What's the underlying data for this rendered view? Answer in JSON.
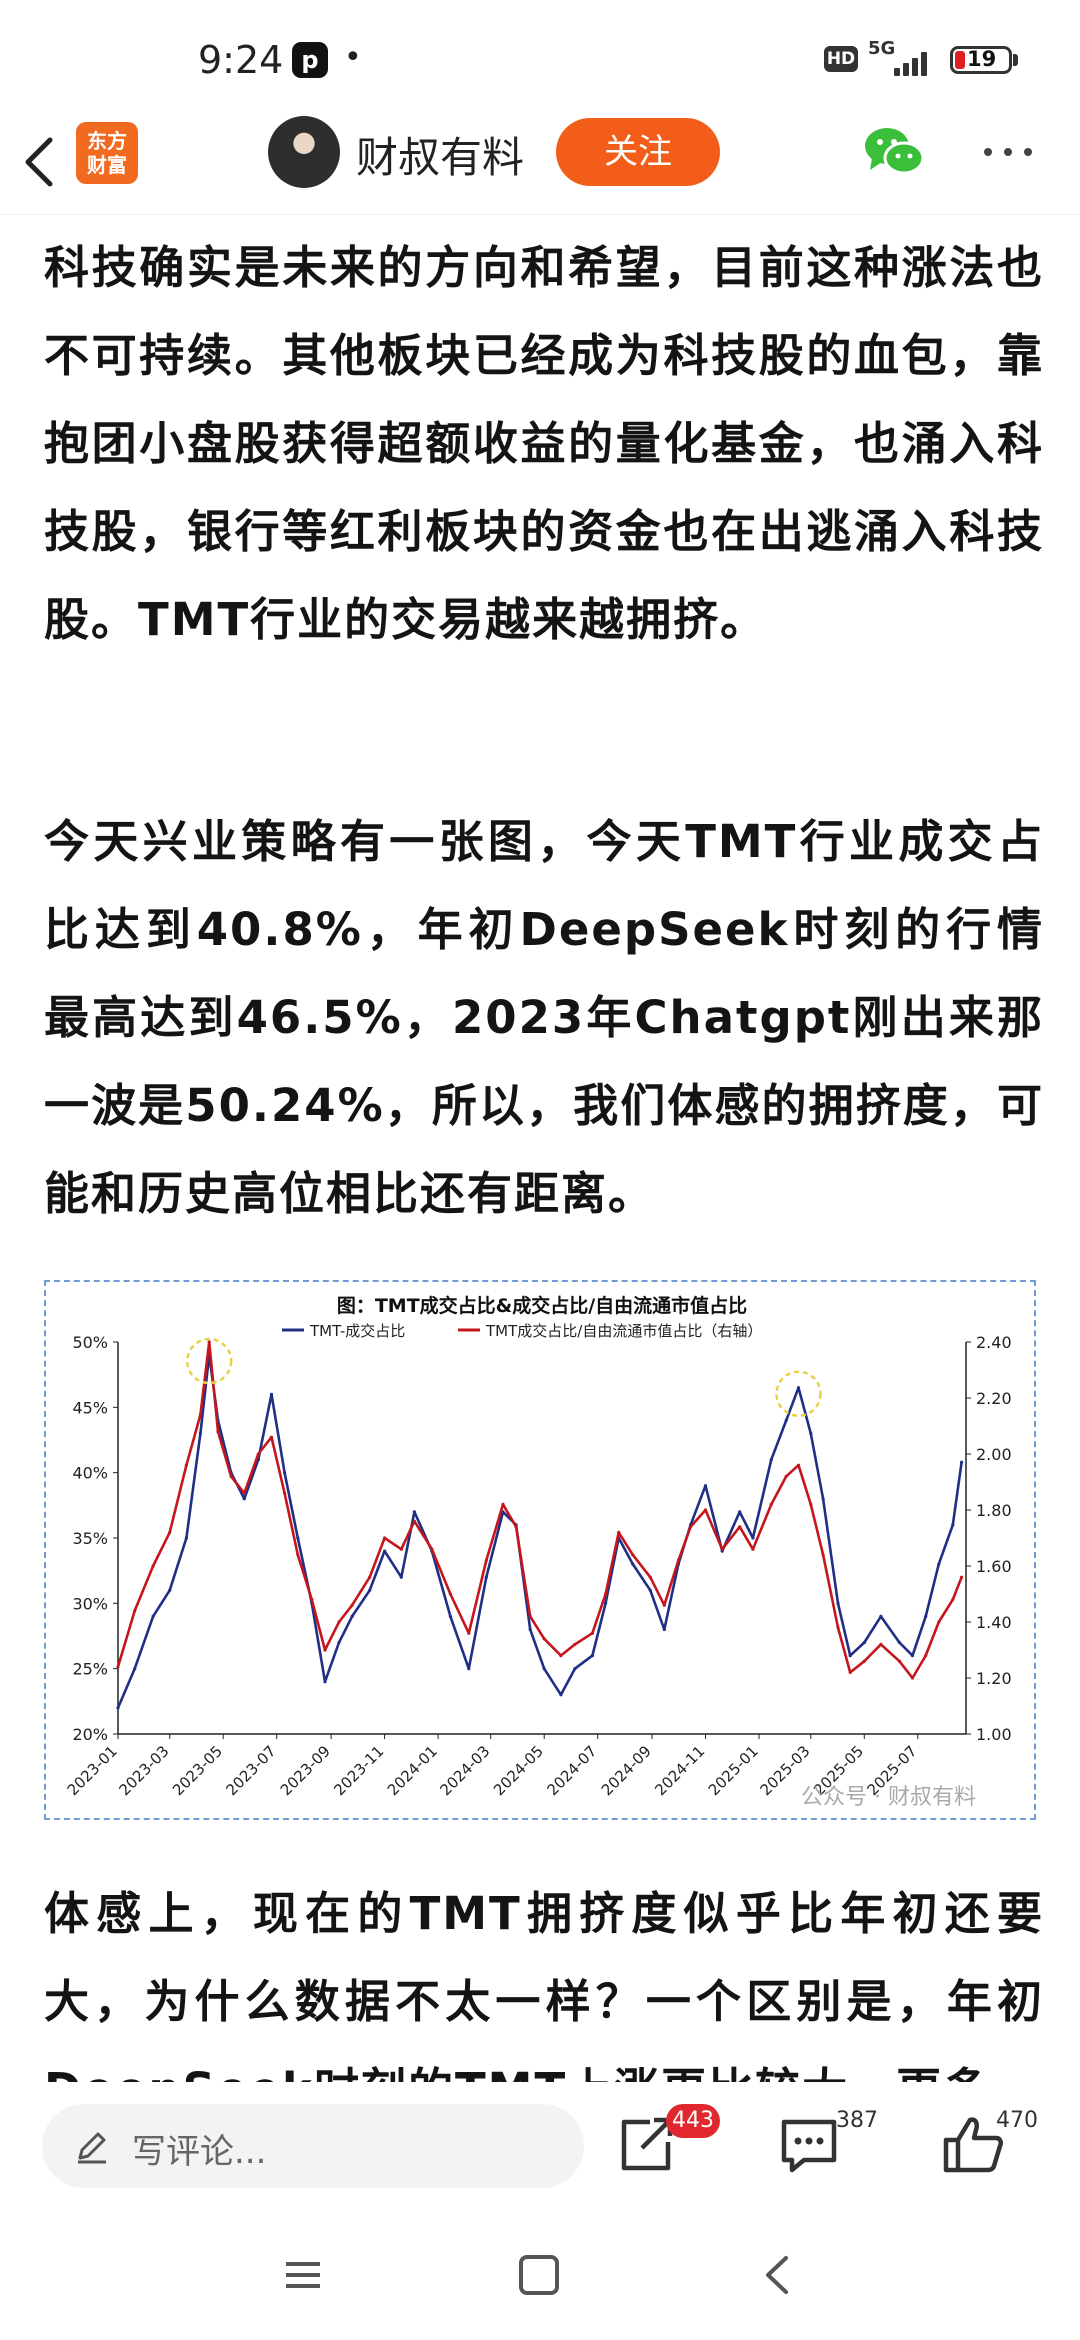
{
  "status_bar": {
    "time": "9:24",
    "app_icon_letter": "p",
    "dot": "•",
    "hd": "HD",
    "network": "5G",
    "battery": "19"
  },
  "header": {
    "logo_line1": "东方",
    "logo_line2": "财富",
    "author": "财叔有料",
    "follow_label": "关注"
  },
  "article": {
    "para1": "科技确实是未来的方向和希望，目前这种涨法也不可持续。其他板块已经成为科技股的血包，靠抱团小盘股获得超额收益的量化基金，也涌入科技股，银行等红利板块的资金也在出逃涌入科技股。TMT行业的交易越来越拥挤。",
    "para2": "今天兴业策略有一张图，今天TMT行业成交占比达到40.8%，年初DeepSeek时刻的行情最高达到46.5%，2023年Chatgpt刚出来那一波是50.24%，所以，我们体感的拥挤度，可能和历史高位相比还有距离。",
    "para3": "体感上，现在的TMT拥挤度似乎比年初还要大，为什么数据不太一样？一个区别是，年初DeepSeek时刻的TMT上涨更比较大，更多"
  },
  "chart_data": {
    "type": "line",
    "title": "图：TMT成交占比&成交占比/自由流通市值占比",
    "watermark": "公众号 · 财叔有料",
    "x_ticks": [
      "2023-01",
      "2023-03",
      "2023-05",
      "2023-07",
      "2023-09",
      "2023-11",
      "2024-01",
      "2024-03",
      "2024-05",
      "2024-07",
      "2024-09",
      "2024-11",
      "2025-01",
      "2025-03",
      "2025-05",
      "2025-07"
    ],
    "y_left_ticks": [
      "50%",
      "45%",
      "40%",
      "35%",
      "30%",
      "25%",
      "20%"
    ],
    "y_right_ticks": [
      "2.40",
      "2.20",
      "2.00",
      "1.80",
      "1.60",
      "1.40",
      "1.20",
      "1.00"
    ],
    "ylim_left": [
      20,
      50
    ],
    "ylim_right": [
      1.0,
      2.4
    ],
    "legend_position": "top",
    "series": [
      {
        "name": "TMT-成交占比",
        "axis": "left",
        "color": "#1f2f86",
        "points": [
          [
            "2023-01-01",
            22
          ],
          [
            "2023-01-20",
            25
          ],
          [
            "2023-02-10",
            29
          ],
          [
            "2023-03-01",
            31
          ],
          [
            "2023-03-20",
            35
          ],
          [
            "2023-04-05",
            43
          ],
          [
            "2023-04-15",
            49
          ],
          [
            "2023-04-25",
            44
          ],
          [
            "2023-05-10",
            40
          ],
          [
            "2023-05-25",
            38
          ],
          [
            "2023-06-10",
            41
          ],
          [
            "2023-06-25",
            46
          ],
          [
            "2023-07-10",
            40
          ],
          [
            "2023-07-25",
            35
          ],
          [
            "2023-08-10",
            30
          ],
          [
            "2023-08-25",
            24
          ],
          [
            "2023-09-10",
            27
          ],
          [
            "2023-09-25",
            29
          ],
          [
            "2023-10-15",
            31
          ],
          [
            "2023-11-01",
            34
          ],
          [
            "2023-11-20",
            32
          ],
          [
            "2023-12-05",
            37
          ],
          [
            "2023-12-25",
            34
          ],
          [
            "2024-01-15",
            29
          ],
          [
            "2024-02-05",
            25
          ],
          [
            "2024-02-25",
            32
          ],
          [
            "2024-03-15",
            37
          ],
          [
            "2024-03-30",
            36
          ],
          [
            "2024-04-15",
            28
          ],
          [
            "2024-05-01",
            25
          ],
          [
            "2024-05-20",
            23
          ],
          [
            "2024-06-05",
            25
          ],
          [
            "2024-06-25",
            26
          ],
          [
            "2024-07-10",
            30
          ],
          [
            "2024-07-25",
            35
          ],
          [
            "2024-08-10",
            33
          ],
          [
            "2024-08-30",
            31
          ],
          [
            "2024-09-15",
            28
          ],
          [
            "2024-10-01",
            33
          ],
          [
            "2024-10-15",
            36
          ],
          [
            "2024-11-01",
            39
          ],
          [
            "2024-11-20",
            34
          ],
          [
            "2024-12-10",
            37
          ],
          [
            "2024-12-25",
            35
          ],
          [
            "2025-01-15",
            41
          ],
          [
            "2025-02-01",
            44
          ],
          [
            "2025-02-15",
            46.5
          ],
          [
            "2025-03-01",
            43
          ],
          [
            "2025-03-15",
            38
          ],
          [
            "2025-04-01",
            30
          ],
          [
            "2025-04-15",
            26
          ],
          [
            "2025-05-01",
            27
          ],
          [
            "2025-05-20",
            29
          ],
          [
            "2025-06-10",
            27
          ],
          [
            "2025-06-25",
            26
          ],
          [
            "2025-07-10",
            29
          ],
          [
            "2025-07-25",
            33
          ],
          [
            "2025-08-10",
            36
          ],
          [
            "2025-08-20",
            40.8
          ]
        ]
      },
      {
        "name": "TMT成交占比/自由流通市值占比（右轴）",
        "axis": "right",
        "color": "#c4161c",
        "points": [
          [
            "2023-01-01",
            1.24
          ],
          [
            "2023-01-20",
            1.44
          ],
          [
            "2023-02-10",
            1.6
          ],
          [
            "2023-03-01",
            1.72
          ],
          [
            "2023-03-20",
            1.96
          ],
          [
            "2023-04-05",
            2.14
          ],
          [
            "2023-04-15",
            2.4
          ],
          [
            "2023-04-25",
            2.08
          ],
          [
            "2023-05-10",
            1.92
          ],
          [
            "2023-05-25",
            1.86
          ],
          [
            "2023-06-10",
            2.0
          ],
          [
            "2023-06-25",
            2.06
          ],
          [
            "2023-07-10",
            1.86
          ],
          [
            "2023-07-25",
            1.64
          ],
          [
            "2023-08-10",
            1.48
          ],
          [
            "2023-08-25",
            1.3
          ],
          [
            "2023-09-10",
            1.4
          ],
          [
            "2023-09-25",
            1.46
          ],
          [
            "2023-10-15",
            1.56
          ],
          [
            "2023-11-01",
            1.7
          ],
          [
            "2023-11-20",
            1.66
          ],
          [
            "2023-12-05",
            1.76
          ],
          [
            "2023-12-25",
            1.66
          ],
          [
            "2024-01-15",
            1.5
          ],
          [
            "2024-02-05",
            1.36
          ],
          [
            "2024-02-25",
            1.62
          ],
          [
            "2024-03-15",
            1.82
          ],
          [
            "2024-03-30",
            1.74
          ],
          [
            "2024-04-15",
            1.42
          ],
          [
            "2024-05-01",
            1.34
          ],
          [
            "2024-05-20",
            1.28
          ],
          [
            "2024-06-05",
            1.32
          ],
          [
            "2024-06-25",
            1.36
          ],
          [
            "2024-07-10",
            1.5
          ],
          [
            "2024-07-25",
            1.72
          ],
          [
            "2024-08-10",
            1.64
          ],
          [
            "2024-08-30",
            1.56
          ],
          [
            "2024-09-15",
            1.46
          ],
          [
            "2024-10-01",
            1.62
          ],
          [
            "2024-10-15",
            1.74
          ],
          [
            "2024-11-01",
            1.8
          ],
          [
            "2024-11-20",
            1.66
          ],
          [
            "2024-12-10",
            1.74
          ],
          [
            "2024-12-25",
            1.66
          ],
          [
            "2025-01-15",
            1.82
          ],
          [
            "2025-02-01",
            1.92
          ],
          [
            "2025-02-15",
            1.96
          ],
          [
            "2025-03-01",
            1.82
          ],
          [
            "2025-03-15",
            1.64
          ],
          [
            "2025-04-01",
            1.38
          ],
          [
            "2025-04-15",
            1.22
          ],
          [
            "2025-05-01",
            1.26
          ],
          [
            "2025-05-20",
            1.32
          ],
          [
            "2025-06-10",
            1.26
          ],
          [
            "2025-06-25",
            1.2
          ],
          [
            "2025-07-10",
            1.28
          ],
          [
            "2025-07-25",
            1.4
          ],
          [
            "2025-08-10",
            1.48
          ],
          [
            "2025-08-20",
            1.56
          ]
        ]
      }
    ],
    "highlight_peaks": [
      "2023-04-15",
      "2025-02-15"
    ]
  },
  "bottom_bar": {
    "comment_placeholder": "写评论...",
    "share_count": "443",
    "comment_count": "387",
    "like_count": "470"
  },
  "icons": {
    "back": "back-icon",
    "wechat": "wechat-icon",
    "more": "more-icon",
    "pen": "pen-icon",
    "share": "share-icon",
    "comment": "comment-icon",
    "like": "like-icon",
    "menu": "menu-icon",
    "home": "home-icon",
    "nav_back": "nav-back-icon"
  }
}
